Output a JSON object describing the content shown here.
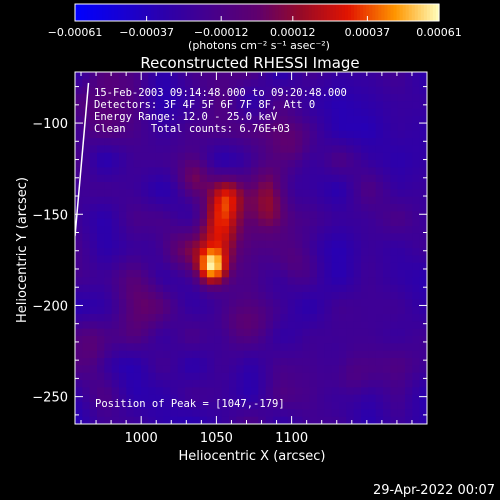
{
  "chart_data": {
    "type": "heatmap",
    "title": "Reconstructed RHESSI Image",
    "xlabel": "Heliocentric X (arcsec)",
    "ylabel": "Heliocentric Y (arcsec)",
    "xlim": [
      956,
      1190
    ],
    "ylim": [
      -265,
      -72
    ],
    "x_ticks": [
      {
        "value": 1000,
        "label": "1000"
      },
      {
        "value": 1050,
        "label": "1050"
      },
      {
        "value": 1100,
        "label": "1100"
      }
    ],
    "y_ticks": [
      {
        "value": -100,
        "label": "−100"
      },
      {
        "value": -150,
        "label": "−150"
      },
      {
        "value": -200,
        "label": "−200"
      },
      {
        "value": -250,
        "label": "−250"
      }
    ],
    "colorbar": {
      "range": [
        -0.00061,
        0.00061
      ],
      "tick_values": [
        -0.00061,
        -0.00037,
        -0.00012,
        0.00012,
        0.00037,
        0.00061
      ],
      "tick_labels": [
        "−0.00061",
        "−0.00037",
        "−0.00012",
        "0.00012",
        "0.00037",
        "0.00061"
      ],
      "unit_label": "(photons cm⁻² s⁻¹ asec⁻²)"
    },
    "annotations": [
      "15-Feb-2003 09:14:48.000 to 09:20:48.000",
      "Detectors: 3F 4F 5F 6F 7F 8F, Att 0",
      "Energy Range: 12.0 - 25.0 keV",
      "Clean    Total counts: 6.76E+03"
    ],
    "peak_label": "Position of Peak = [1047,-179]",
    "peak": {
      "x": 1047,
      "y": -179,
      "value": 0.00061
    },
    "sources": [
      {
        "x": 1047,
        "y": -179,
        "value": 0.00061,
        "sx": 7,
        "sy": 7
      },
      {
        "x": 1052,
        "y": -158,
        "value": 0.00042,
        "sx": 10,
        "sy": 14
      },
      {
        "x": 1058,
        "y": -140,
        "value": 0.0003,
        "sx": 8,
        "sy": 8
      },
      {
        "x": 1085,
        "y": -140,
        "value": 0.00034,
        "sx": 9,
        "sy": 14
      },
      {
        "x": 1035,
        "y": -130,
        "value": 0.00022,
        "sx": 8,
        "sy": 8
      },
      {
        "x": 1028,
        "y": -170,
        "value": 0.00022,
        "sx": 11,
        "sy": 9
      },
      {
        "x": 1070,
        "y": -210,
        "value": 0.00024,
        "sx": 14,
        "sy": 12
      },
      {
        "x": 1000,
        "y": -200,
        "value": 0.00016,
        "sx": 12,
        "sy": 10
      },
      {
        "x": 1100,
        "y": -175,
        "value": 0.00016,
        "sx": 11,
        "sy": 11
      },
      {
        "x": 1100,
        "y": -115,
        "value": 0.00016,
        "sx": 10,
        "sy": 9
      },
      {
        "x": 970,
        "y": -225,
        "value": 0.00014,
        "sx": 9,
        "sy": 12
      },
      {
        "x": 975,
        "y": -90,
        "value": 0.00012,
        "sx": 11,
        "sy": 11
      },
      {
        "x": 1140,
        "y": -240,
        "value": 0.00012,
        "sx": 12,
        "sy": 10
      }
    ],
    "background_level": -0.00022
  },
  "limb_line": {
    "points": [
      [
        965,
        -78
      ],
      [
        956,
        -162
      ]
    ]
  },
  "footer_date": "29-Apr-2022 00:07"
}
